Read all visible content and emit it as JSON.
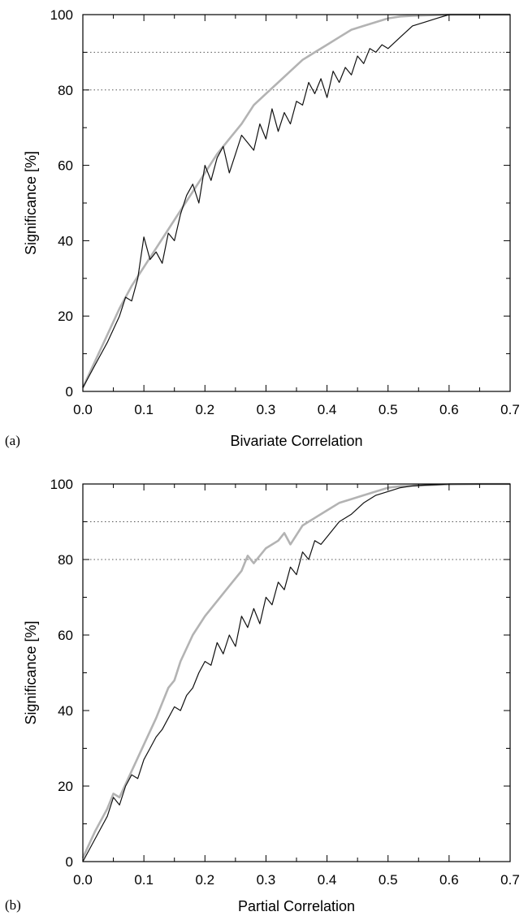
{
  "colors": {
    "series_gray": "#b3b3b3",
    "series_black": "#111111",
    "ref_line": "#555555"
  },
  "chart_data": [
    {
      "type": "line",
      "panel_label": "(a)",
      "xlabel": "Bivariate Correlation",
      "ylabel": "Significance [%]",
      "xlim": [
        0,
        0.7
      ],
      "ylim": [
        0,
        100
      ],
      "x_ticks": [
        "0.0",
        "0.1",
        "0.2",
        "0.3",
        "0.4",
        "0.5",
        "0.6",
        "0.7"
      ],
      "y_ticks": [
        "0",
        "20",
        "40",
        "60",
        "80",
        "100"
      ],
      "reference_lines": [
        80,
        90
      ],
      "grid": false,
      "series": [
        {
          "color": "#b3b3b3",
          "x": [
            0,
            0.02,
            0.04,
            0.06,
            0.08,
            0.1,
            0.12,
            0.14,
            0.16,
            0.18,
            0.2,
            0.22,
            0.24,
            0.26,
            0.28,
            0.3,
            0.32,
            0.34,
            0.36,
            0.38,
            0.4,
            0.42,
            0.44,
            0.46,
            0.48,
            0.5,
            0.52,
            0.54,
            0.56,
            0.58,
            0.6,
            0.65,
            0.7
          ],
          "y": [
            1,
            8,
            15,
            22,
            28,
            33,
            38,
            43,
            48,
            53,
            58,
            63,
            67,
            71,
            76,
            79,
            82,
            85,
            88,
            90,
            92,
            94,
            96,
            97,
            98,
            99,
            99.5,
            99.7,
            99.8,
            99.9,
            100,
            100,
            100
          ]
        },
        {
          "color": "#111111",
          "x": [
            0,
            0.02,
            0.04,
            0.06,
            0.07,
            0.08,
            0.09,
            0.1,
            0.11,
            0.12,
            0.13,
            0.14,
            0.15,
            0.16,
            0.17,
            0.18,
            0.19,
            0.2,
            0.21,
            0.22,
            0.23,
            0.24,
            0.25,
            0.26,
            0.27,
            0.28,
            0.29,
            0.3,
            0.31,
            0.32,
            0.33,
            0.34,
            0.35,
            0.36,
            0.37,
            0.38,
            0.39,
            0.4,
            0.41,
            0.42,
            0.43,
            0.44,
            0.45,
            0.46,
            0.47,
            0.48,
            0.49,
            0.5,
            0.52,
            0.54,
            0.56,
            0.58,
            0.6,
            0.7
          ],
          "y": [
            1,
            7,
            13,
            20,
            25,
            24,
            30,
            41,
            35,
            37,
            34,
            42,
            40,
            47,
            52,
            55,
            50,
            60,
            56,
            62,
            65,
            58,
            63,
            68,
            66,
            64,
            71,
            67,
            75,
            69,
            74,
            71,
            77,
            76,
            82,
            79,
            83,
            78,
            85,
            82,
            86,
            84,
            89,
            87,
            91,
            90,
            92,
            91,
            94,
            97,
            98,
            99,
            100,
            100
          ]
        }
      ]
    },
    {
      "type": "line",
      "panel_label": "(b)",
      "xlabel": "Partial Correlation",
      "ylabel": "Significance [%]",
      "xlim": [
        0,
        0.7
      ],
      "ylim": [
        0,
        100
      ],
      "x_ticks": [
        "0.0",
        "0.1",
        "0.2",
        "0.3",
        "0.4",
        "0.5",
        "0.6",
        "0.7"
      ],
      "y_ticks": [
        "0",
        "20",
        "40",
        "60",
        "80",
        "100"
      ],
      "reference_lines": [
        80,
        90
      ],
      "grid": false,
      "series": [
        {
          "color": "#b3b3b3",
          "x": [
            0,
            0.02,
            0.04,
            0.05,
            0.06,
            0.08,
            0.1,
            0.12,
            0.14,
            0.15,
            0.16,
            0.18,
            0.2,
            0.22,
            0.24,
            0.26,
            0.27,
            0.28,
            0.3,
            0.32,
            0.33,
            0.34,
            0.36,
            0.38,
            0.4,
            0.42,
            0.44,
            0.46,
            0.48,
            0.5,
            0.52,
            0.55,
            0.58,
            0.6,
            0.65,
            0.7
          ],
          "y": [
            1,
            8,
            14,
            18,
            17,
            24,
            31,
            38,
            46,
            48,
            53,
            60,
            65,
            69,
            73,
            77,
            81,
            79,
            83,
            85,
            87,
            84,
            89,
            91,
            93,
            95,
            96,
            97,
            98,
            99,
            99.4,
            99.6,
            99.8,
            99.9,
            100,
            100
          ]
        },
        {
          "color": "#111111",
          "x": [
            0,
            0.02,
            0.04,
            0.05,
            0.06,
            0.07,
            0.08,
            0.09,
            0.1,
            0.11,
            0.12,
            0.13,
            0.14,
            0.15,
            0.16,
            0.17,
            0.18,
            0.19,
            0.2,
            0.21,
            0.22,
            0.23,
            0.24,
            0.25,
            0.26,
            0.27,
            0.28,
            0.29,
            0.3,
            0.31,
            0.32,
            0.33,
            0.34,
            0.35,
            0.36,
            0.37,
            0.38,
            0.39,
            0.4,
            0.42,
            0.44,
            0.46,
            0.48,
            0.5,
            0.52,
            0.54,
            0.56,
            0.58,
            0.6,
            0.7
          ],
          "y": [
            0,
            6,
            12,
            17,
            15,
            20,
            23,
            22,
            27,
            30,
            33,
            35,
            38,
            41,
            40,
            44,
            46,
            50,
            53,
            52,
            58,
            55,
            60,
            57,
            65,
            62,
            67,
            63,
            70,
            68,
            74,
            72,
            78,
            76,
            82,
            80,
            85,
            84,
            86,
            90,
            92,
            95,
            97,
            98,
            99,
            99.5,
            99.7,
            99.8,
            100,
            100
          ]
        }
      ]
    }
  ]
}
